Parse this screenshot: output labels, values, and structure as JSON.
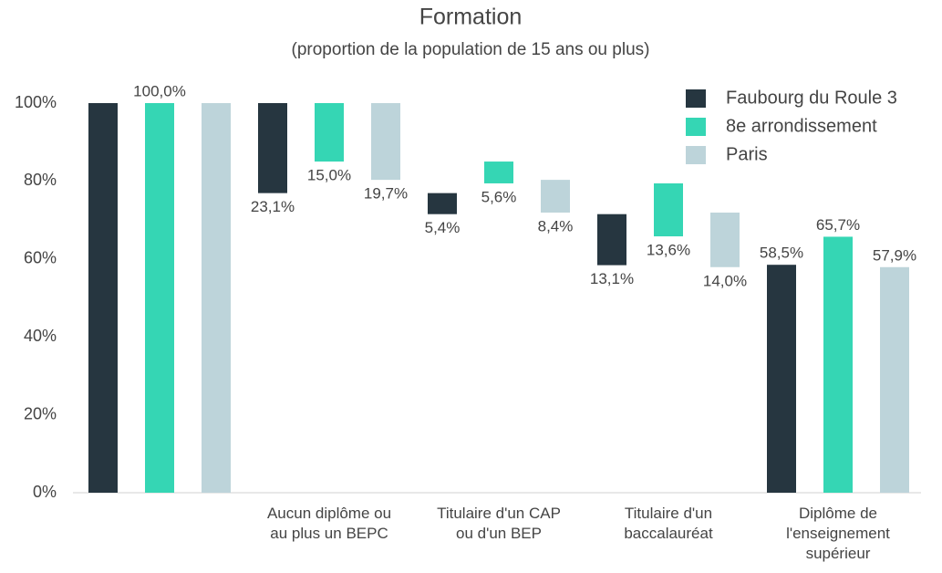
{
  "chart_data": {
    "type": "waterfall",
    "title": "Formation",
    "subtitle": "(proportion de la population de 15 ans ou plus)",
    "categories": [
      null,
      "Aucun diplôme ou au plus un BEPC",
      "Titulaire d'un CAP ou d'un BEP",
      "Titulaire d'un baccalauréat",
      "Diplôme de l'enseignement supérieur"
    ],
    "series": [
      {
        "name": "Faubourg du Roule 3",
        "color": "#263640",
        "values": [
          100,
          23.1,
          5.4,
          13.1,
          58.5
        ],
        "value_labels": [
          null,
          "23,1%",
          "5,4%",
          "13,1%",
          "58,5%"
        ]
      },
      {
        "name": "8e arrondissement",
        "color": "#35d6b4",
        "values": [
          100,
          15.0,
          5.6,
          13.6,
          65.7
        ],
        "value_labels": [
          "100,0%",
          "15,0%",
          "5,6%",
          "13,6%",
          "65,7%"
        ]
      },
      {
        "name": "Paris",
        "color": "#bdd4da",
        "values": [
          100,
          19.7,
          8.4,
          14.0,
          57.9
        ],
        "value_labels": [
          null,
          "19,7%",
          "8,4%",
          "14,0%",
          "57,9%"
        ]
      }
    ],
    "ylim": [
      0,
      100
    ],
    "yticks": [
      {
        "value": 0,
        "label": "0%"
      },
      {
        "value": 20,
        "label": "20%"
      },
      {
        "value": 40,
        "label": "40%"
      },
      {
        "value": 60,
        "label": "60%"
      },
      {
        "value": 80,
        "label": "80%"
      },
      {
        "value": 100,
        "label": "100%"
      }
    ],
    "legend": "top-right"
  }
}
